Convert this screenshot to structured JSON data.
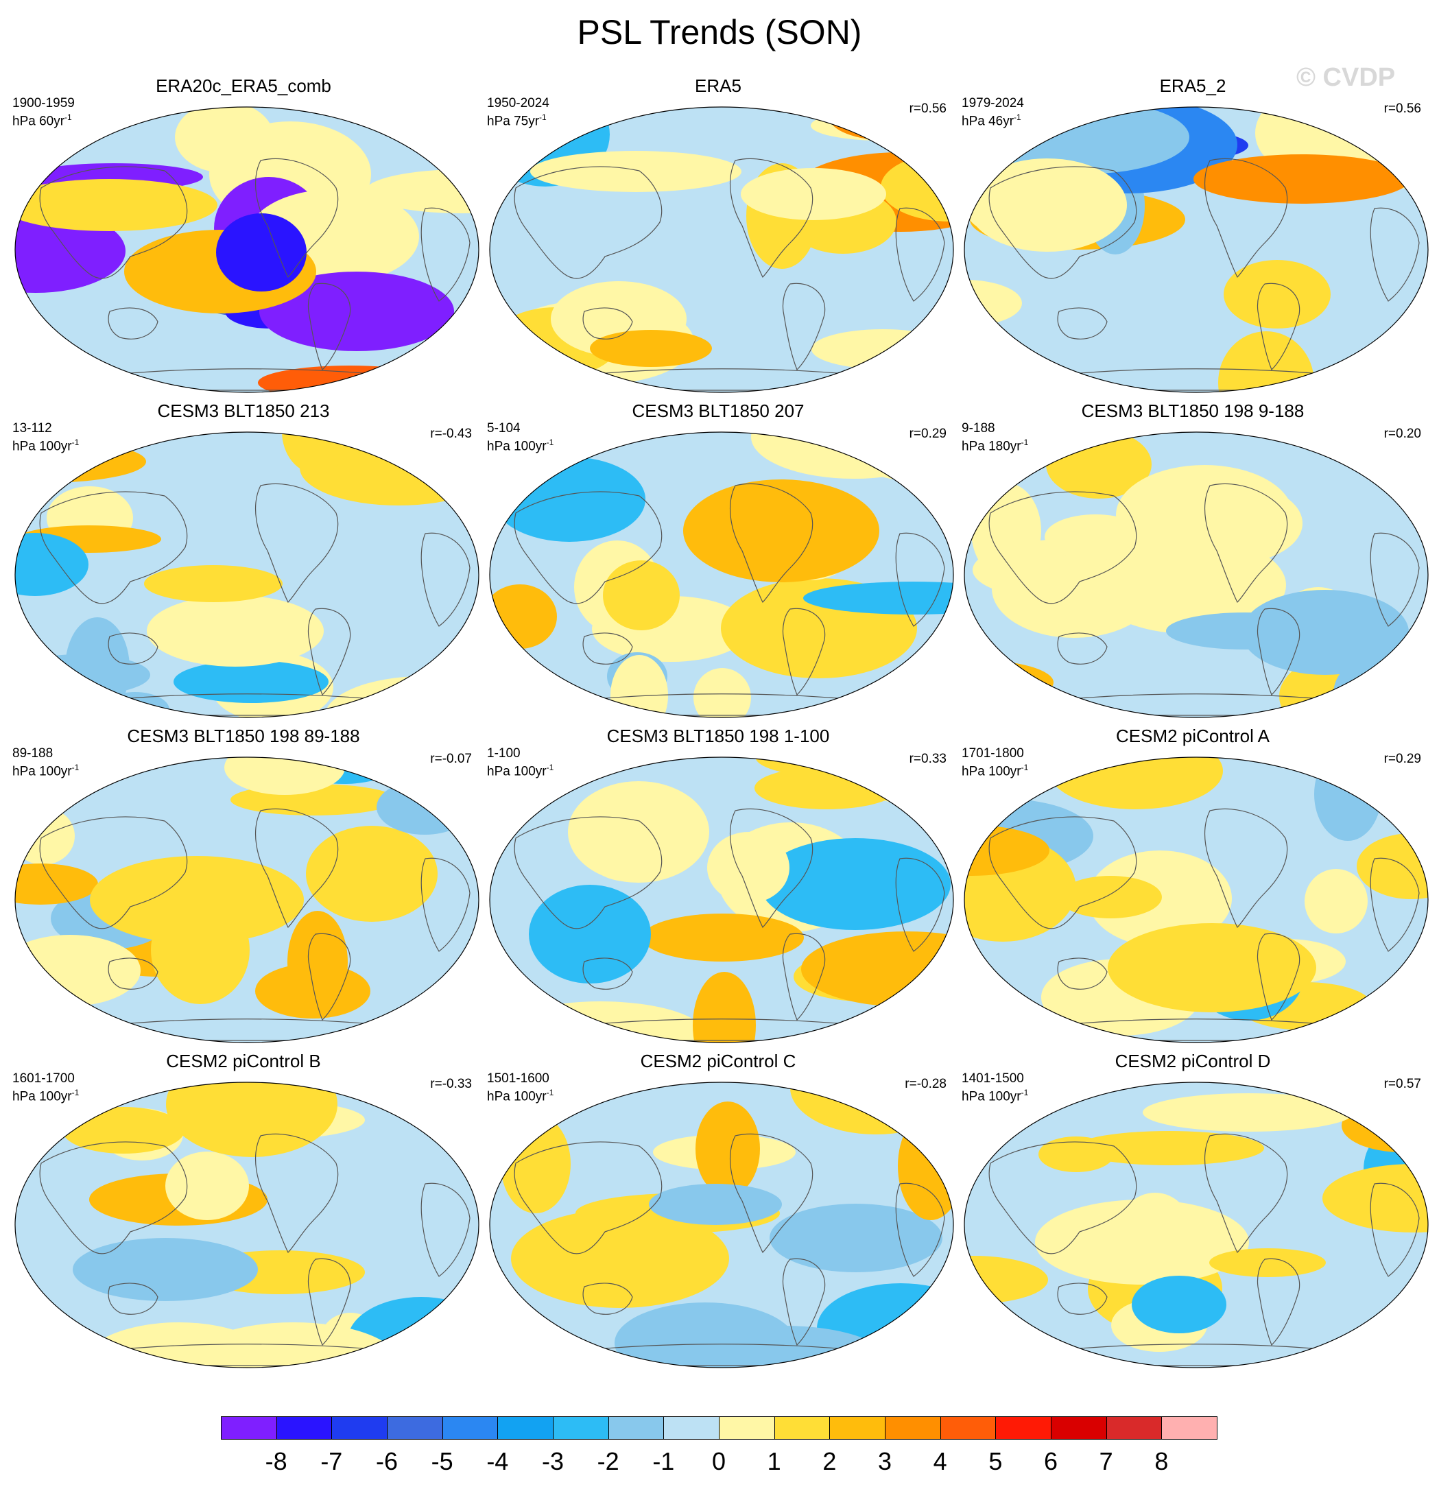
{
  "title": "PSL Trends (SON)",
  "watermark": "© CVDP",
  "panels": [
    {
      "title": "ERA20c_ERA5_comb",
      "period": "1900-1959",
      "units": "hPa 60yr",
      "units_exp": "-1",
      "corr": ""
    },
    {
      "title": "ERA5",
      "period": "1950-2024",
      "units": "hPa 75yr",
      "units_exp": "-1",
      "corr": "r=0.56"
    },
    {
      "title": "ERA5_2",
      "period": "1979-2024",
      "units": "hPa 46yr",
      "units_exp": "-1",
      "corr": "r=0.56"
    },
    {
      "title": "CESM3 BLT1850 213",
      "period": "13-112",
      "units": "hPa 100yr",
      "units_exp": "-1",
      "corr": "r=-0.43"
    },
    {
      "title": "CESM3 BLT1850 207",
      "period": "5-104",
      "units": "hPa 100yr",
      "units_exp": "-1",
      "corr": "r=0.29"
    },
    {
      "title": "CESM3 BLT1850 198 9-188",
      "period": "9-188",
      "units": "hPa 180yr",
      "units_exp": "-1",
      "corr": "r=0.20"
    },
    {
      "title": "CESM3 BLT1850 198 89-188",
      "period": "89-188",
      "units": "hPa 100yr",
      "units_exp": "-1",
      "corr": "r=-0.07"
    },
    {
      "title": "CESM3 BLT1850 198 1-100",
      "period": "1-100",
      "units": "hPa 100yr",
      "units_exp": "-1",
      "corr": "r=0.33"
    },
    {
      "title": "CESM2 piControl A",
      "period": "1701-1800",
      "units": "hPa 100yr",
      "units_exp": "-1",
      "corr": "r=0.29"
    },
    {
      "title": "CESM2 piControl B",
      "period": "1601-1700",
      "units": "hPa 100yr",
      "units_exp": "-1",
      "corr": "r=-0.33"
    },
    {
      "title": "CESM2 piControl C",
      "period": "1501-1600",
      "units": "hPa 100yr",
      "units_exp": "-1",
      "corr": "r=-0.28"
    },
    {
      "title": "CESM2 piControl D",
      "period": "1401-1500",
      "units": "hPa 100yr",
      "units_exp": "-1",
      "corr": "r=0.57"
    }
  ],
  "colorbar": {
    "colors": [
      "#7f1fff",
      "#2a14ff",
      "#1f3cf0",
      "#3d6be0",
      "#2b87f2",
      "#12a2f2",
      "#2dbcf5",
      "#88c8ec",
      "#bde1f4",
      "#fff7a6",
      "#ffde36",
      "#ffbc0c",
      "#ff8f00",
      "#ff5d08",
      "#ff1a05",
      "#d90000",
      "#d92a2a",
      "#ffb0b0"
    ],
    "labels": [
      "-8",
      "-7",
      "-6",
      "-5",
      "-4",
      "-3",
      "-2",
      "-1",
      "0",
      "1",
      "2",
      "3",
      "4",
      "5",
      "6",
      "7",
      "8"
    ]
  }
}
